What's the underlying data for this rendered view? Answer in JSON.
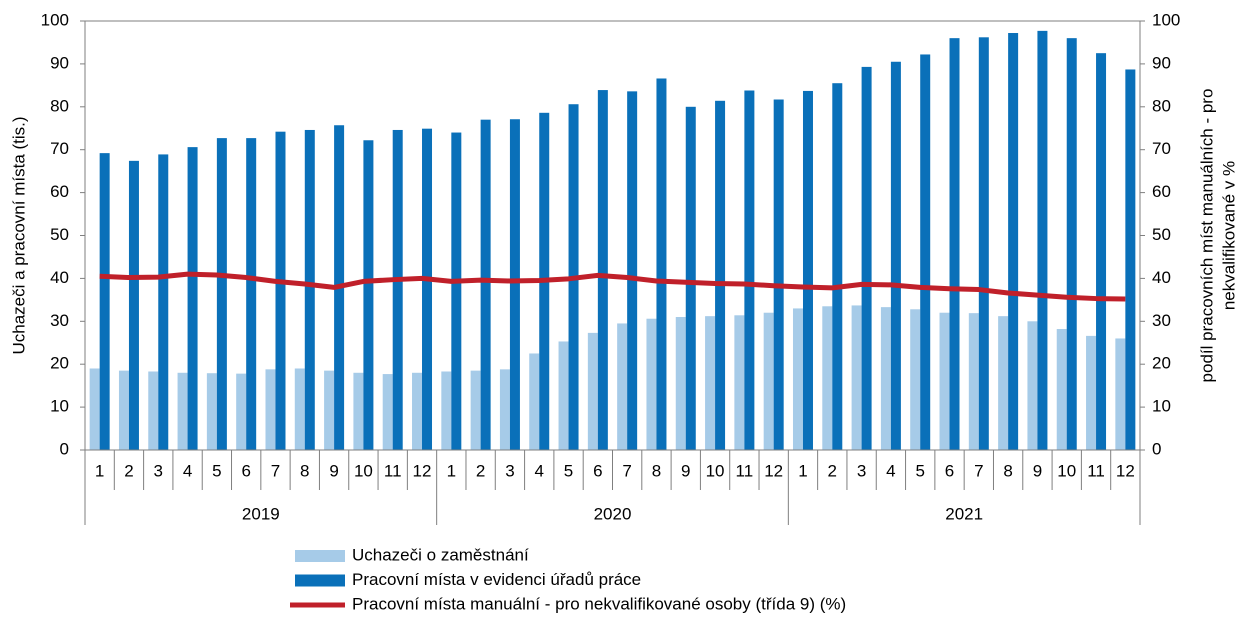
{
  "chart_data": {
    "type": "bar",
    "categories": [
      "1",
      "2",
      "3",
      "4",
      "5",
      "6",
      "7",
      "8",
      "9",
      "10",
      "11",
      "12",
      "1",
      "2",
      "3",
      "4",
      "5",
      "6",
      "7",
      "8",
      "9",
      "10",
      "11",
      "12",
      "1",
      "2",
      "3",
      "4",
      "5",
      "6",
      "7",
      "8",
      "9",
      "10",
      "11",
      "12"
    ],
    "groups": [
      "2019",
      "2020",
      "2021"
    ],
    "y_label": "Uchazeči a pracovní místa (tis.)",
    "y2_label": [
      "podíl pracovních míst manuálních - pro",
      "nekvalifikované v %"
    ],
    "ylim": [
      0,
      100
    ],
    "yticks": [
      0,
      10,
      20,
      30,
      40,
      50,
      60,
      70,
      80,
      90,
      100
    ],
    "y2lim": [
      0,
      100
    ],
    "y2ticks": [
      0,
      10,
      20,
      30,
      40,
      50,
      60,
      70,
      80,
      90,
      100
    ],
    "grid": false,
    "series": [
      {
        "name": "Uchazeči o zaměstnání",
        "color": "#a6cbe8",
        "type": "bar",
        "values": [
          19,
          18.5,
          18.3,
          18,
          17.9,
          17.8,
          18.8,
          19,
          18.5,
          18,
          17.7,
          18,
          18.3,
          18.5,
          18.8,
          22.5,
          25.3,
          27.3,
          29.5,
          30.6,
          31,
          31.2,
          31.4,
          32,
          33,
          33.5,
          33.7,
          33.3,
          32.8,
          32,
          31.9,
          31.2,
          30,
          28.2,
          26.6,
          26
        ]
      },
      {
        "name": "Pracovní místa v evidenci úřadů práce",
        "color": "#0a70b9",
        "type": "bar",
        "values": [
          69.2,
          67.4,
          68.9,
          70.6,
          72.7,
          72.7,
          74.2,
          74.6,
          75.7,
          72.2,
          74.6,
          74.9,
          74,
          77,
          77.1,
          78.6,
          80.6,
          83.9,
          83.6,
          86.6,
          80,
          81.4,
          83.8,
          81.7,
          83.7,
          85.5,
          89.3,
          90.5,
          92.2,
          96,
          96.2,
          97.2,
          97.7,
          96,
          92.5,
          88.7
        ]
      },
      {
        "name": "Pracovní místa manuální - pro nekvalifikované osoby (třída 9) (%)",
        "color": "#c0202a",
        "type": "line",
        "axis": "y2",
        "values": [
          40.5,
          40.2,
          40.3,
          41,
          40.8,
          40.2,
          39.3,
          38.7,
          37.9,
          39.3,
          39.7,
          40,
          39.3,
          39.6,
          39.4,
          39.5,
          39.9,
          40.7,
          40.2,
          39.4,
          39.1,
          38.8,
          38.7,
          38.3,
          38,
          37.8,
          38.6,
          38.5,
          37.9,
          37.6,
          37.4,
          36.6,
          36.1,
          35.6,
          35.3,
          35.2
        ]
      }
    ]
  }
}
